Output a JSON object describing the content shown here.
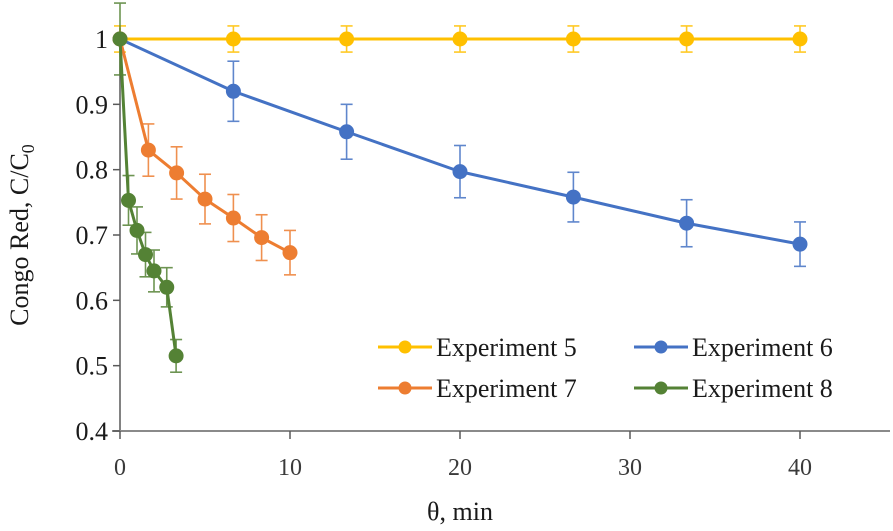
{
  "chart_data": {
    "type": "line",
    "title": "",
    "xlabel": "θ, min",
    "ylabel": "Congo Red, C/C",
    "ylabel_subscript": "0",
    "xlim": [
      0,
      45
    ],
    "ylim": [
      0.4,
      1.0
    ],
    "x_ticks": [
      0,
      10,
      20,
      30,
      40
    ],
    "x_tick_labels": [
      "0",
      "10",
      "20",
      "30",
      "40"
    ],
    "y_ticks": [
      0.4,
      0.5,
      0.6,
      0.7,
      0.8,
      0.9,
      1.0
    ],
    "y_tick_labels": [
      "0.4",
      "0.5",
      "0.6",
      "0.7",
      "0.8",
      "0.9",
      "1"
    ],
    "grid": false,
    "legend_position": "bottom-right",
    "series": [
      {
        "name": "Experiment 5",
        "color": "#FFC000",
        "x": [
          0,
          6.67,
          13.33,
          20,
          26.67,
          33.33,
          40
        ],
        "y": [
          1.0,
          1.0,
          1.0,
          1.0,
          1.0,
          1.0,
          1.0
        ],
        "error": [
          0.02,
          0.02,
          0.02,
          0.02,
          0.02,
          0.02,
          0.02
        ]
      },
      {
        "name": "Experiment 6",
        "color": "#4472C4",
        "x": [
          0,
          6.67,
          13.33,
          20,
          26.67,
          33.33,
          40
        ],
        "y": [
          1.0,
          0.92,
          0.858,
          0.797,
          0.758,
          0.718,
          0.686
        ],
        "error": [
          0,
          0.046,
          0.042,
          0.04,
          0.038,
          0.036,
          0.034
        ]
      },
      {
        "name": "Experiment 7",
        "color": "#ED7D31",
        "x": [
          0,
          1.67,
          3.33,
          5,
          6.67,
          8.33,
          10
        ],
        "y": [
          1.0,
          0.83,
          0.795,
          0.755,
          0.726,
          0.696,
          0.673
        ],
        "error": [
          0,
          0.04,
          0.04,
          0.038,
          0.036,
          0.035,
          0.034
        ]
      },
      {
        "name": "Experiment 8",
        "color": "#548235",
        "x": [
          0,
          0.5,
          1.0,
          1.5,
          2.0,
          2.75,
          3.3
        ],
        "y": [
          1.0,
          0.753,
          0.707,
          0.67,
          0.645,
          0.62,
          0.515
        ],
        "error": [
          0.055,
          0.038,
          0.036,
          0.034,
          0.032,
          0.03,
          0.025
        ]
      }
    ]
  }
}
